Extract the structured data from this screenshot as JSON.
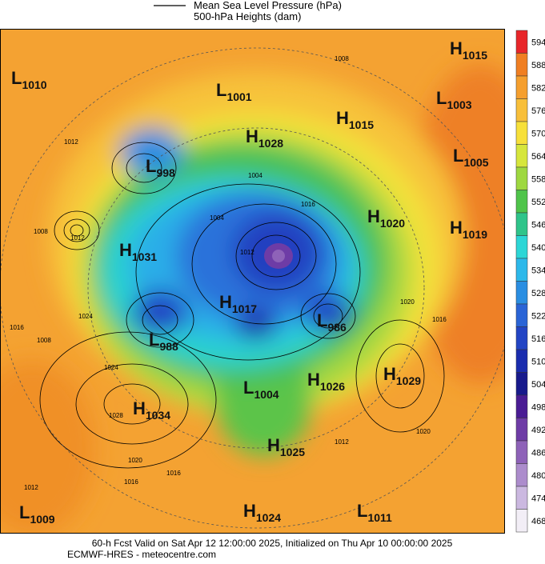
{
  "legend": {
    "items": [
      "Mean Sea Level Pressure (hPa)",
      "500-hPa Heights (dam)"
    ]
  },
  "colorbar": {
    "ticks": [
      594,
      588,
      582,
      576,
      570,
      564,
      558,
      552,
      546,
      540,
      534,
      528,
      522,
      516,
      510,
      504,
      498,
      492,
      486,
      480,
      474,
      468
    ],
    "colors": [
      "#e8262a",
      "#f07f22",
      "#f59f2e",
      "#f8bf3a",
      "#f7e03a",
      "#d6e63c",
      "#9ed840",
      "#4fc44a",
      "#2fc48a",
      "#2cd6d6",
      "#2cb8ea",
      "#2a8ee2",
      "#2a64d6",
      "#2244c4",
      "#1a2cae",
      "#181a8c",
      "#4a1c94",
      "#6e3ca6",
      "#8e62b8",
      "#ac8ccc",
      "#cbb8e0",
      "#f2eef6"
    ]
  },
  "pressure_centers": [
    {
      "kind": "L",
      "value": "1010"
    },
    {
      "kind": "L",
      "value": "1001"
    },
    {
      "kind": "H",
      "value": "1015"
    },
    {
      "kind": "L",
      "value": "1003"
    },
    {
      "kind": "H",
      "value": "1015"
    },
    {
      "kind": "H",
      "value": "1028"
    },
    {
      "kind": "L",
      "value": "1005"
    },
    {
      "kind": "L",
      "value": "998"
    },
    {
      "kind": "H",
      "value": "1020"
    },
    {
      "kind": "H",
      "value": "1019"
    },
    {
      "kind": "H",
      "value": "1031"
    },
    {
      "kind": "H",
      "value": "1017"
    },
    {
      "kind": "L",
      "value": "986"
    },
    {
      "kind": "L",
      "value": "988"
    },
    {
      "kind": "H",
      "value": "1029"
    },
    {
      "kind": "H",
      "value": "1026"
    },
    {
      "kind": "L",
      "value": "1004"
    },
    {
      "kind": "H",
      "value": "1034"
    },
    {
      "kind": "H",
      "value": "1025"
    },
    {
      "kind": "L",
      "value": "1009"
    },
    {
      "kind": "H",
      "value": "1024"
    },
    {
      "kind": "L",
      "value": "1011"
    }
  ],
  "isobar_labels": [
    "1008",
    "1012",
    "1004",
    "1008",
    "1012",
    "1004",
    "1020",
    "1012",
    "1016",
    "1024",
    "1016",
    "1008",
    "1024",
    "1028",
    "1020",
    "1016",
    "1016",
    "1012",
    "1020",
    "1012",
    "1016"
  ],
  "footer": [
    "60-h Fcst Valid on Sat Apr 12 12:00:00 2025, Initialized on Thu Apr 10 00:00:00 2025",
    "ECMWF-HRES  - meteocentre.com"
  ]
}
